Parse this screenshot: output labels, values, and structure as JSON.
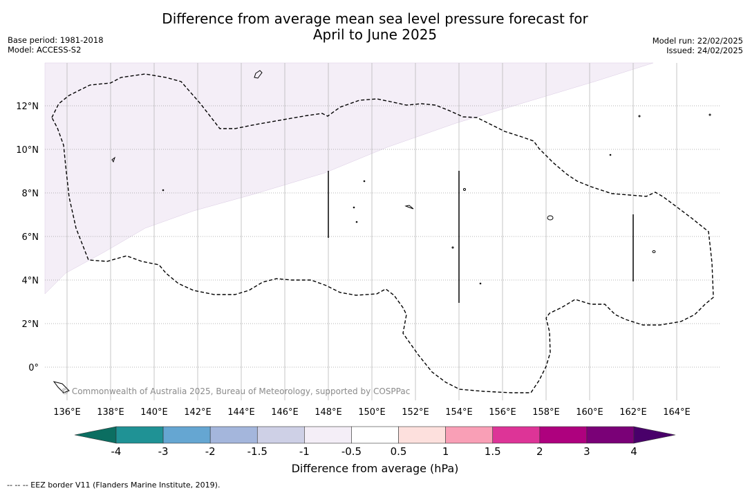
{
  "title": {
    "line1": "Difference from average mean sea level pressure forecast for",
    "line2": "April to June 2025"
  },
  "meta_left": {
    "base_period": "Base period: 1981-2018",
    "model": "Model: ACCESS-S2"
  },
  "meta_right": {
    "model_run": "Model run: 22/02/2025",
    "issued": "Issued: 24/02/2025"
  },
  "map": {
    "lat_labels": [
      "12°N",
      "10°N",
      "8°N",
      "6°N",
      "4°N",
      "2°N",
      "0°"
    ],
    "lon_labels": [
      "136°E",
      "138°E",
      "140°E",
      "142°E",
      "144°E",
      "146°E",
      "148°E",
      "150°E",
      "152°E",
      "154°E",
      "156°E",
      "158°E",
      "160°E",
      "162°E",
      "164°E"
    ],
    "copyright": "© Commonwealth of Australia 2025, Bureau of Meteorology, supported by COSPPac",
    "shaded_category": "-1 to -0.5",
    "shaded_color": "#f4eef7",
    "boundary_style": "dashed"
  },
  "colorbar": {
    "labels": [
      "-4",
      "-3",
      "-2",
      "-1.5",
      "-1",
      "-0.5",
      "0.5",
      "1",
      "1.5",
      "2",
      "3",
      "4"
    ],
    "colors": [
      "#0b6e61",
      "#1f9295",
      "#65a6d2",
      "#a4b6dc",
      "#ced0e6",
      "#f4eef7",
      "#ffffff",
      "#fde0dd",
      "#f99fb6",
      "#dd3497",
      "#ae017e",
      "#7a0177",
      "#49006a"
    ],
    "title": "Difference from average (hPa)"
  },
  "footnote": "--  --  -- EEZ border V11 (Flanders Marine Institute, 2019)."
}
